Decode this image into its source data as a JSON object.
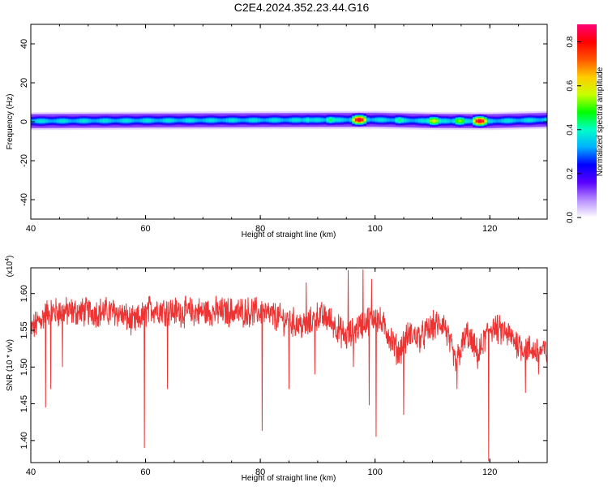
{
  "title": "C2E4.2024.352.23.44.G16",
  "colors": {
    "snr_line": "#ee3333",
    "background": "#ffffff",
    "colorbar": [
      "#ffffff",
      "#b68cff",
      "#5a00ff",
      "#0000ff",
      "#00b0ff",
      "#00ffc8",
      "#00ff00",
      "#c8ff00",
      "#ffcc00",
      "#ff5500",
      "#ff0000",
      "#ff0077"
    ]
  },
  "chart_data": [
    {
      "type": "heatmap",
      "name": "spectrogram",
      "xlabel": "Height of straight line (km)",
      "ylabel": "Frequency (Hz)",
      "xlim": [
        40,
        130
      ],
      "ylim": [
        -50,
        50
      ],
      "x_ticks": [
        40,
        60,
        80,
        100,
        120
      ],
      "x_tick_labels": [
        "40",
        "60",
        "80",
        "100",
        "120"
      ],
      "y_ticks": [
        -40,
        -20,
        0,
        20,
        40
      ],
      "y_tick_labels": [
        "-40",
        "-20",
        "0",
        "20",
        "40"
      ],
      "band_center_hz": [
        [
          40,
          0.3
        ],
        [
          60,
          0.6
        ],
        [
          80,
          0.8
        ],
        [
          100,
          1.0
        ],
        [
          110,
          0.4
        ],
        [
          120,
          0.3
        ],
        [
          130,
          1.0
        ]
      ],
      "band_halfwidth_hz": 3,
      "hotspots": [
        {
          "x": 97,
          "y": 1.5,
          "amplitude": 0.85
        },
        {
          "x": 104,
          "y": 1.5,
          "amplitude": 0.45
        },
        {
          "x": 110,
          "y": 0,
          "amplitude": 0.6
        },
        {
          "x": 114.5,
          "y": 0,
          "amplitude": 0.55
        },
        {
          "x": 118,
          "y": 0,
          "amplitude": 0.85
        },
        {
          "x": 88,
          "y": 1.5,
          "amplitude": 0.4
        },
        {
          "x": 92,
          "y": 1.5,
          "amplitude": 0.45
        }
      ],
      "colorbar": {
        "label": "Normalized spectral amplitude",
        "range": [
          0,
          0.88
        ],
        "ticks": [
          0.0,
          0.2,
          0.4,
          0.6,
          0.8
        ],
        "tick_labels": [
          "0.0",
          "0.2",
          "0.4",
          "0.6",
          "0.8"
        ]
      }
    },
    {
      "type": "line",
      "name": "snr",
      "xlabel": "Height of straight line (km)",
      "ylabel": "SNR (10 * v/v)",
      "y_multiplier": "(x10^4)",
      "xlim": [
        40,
        130
      ],
      "ylim": [
        1.37,
        1.635
      ],
      "x_ticks": [
        40,
        60,
        80,
        100,
        120
      ],
      "x_tick_labels": [
        "40",
        "60",
        "80",
        "100",
        "120"
      ],
      "y_ticks": [
        1.4,
        1.45,
        1.5,
        1.55,
        1.6
      ],
      "y_tick_labels": [
        "1.40",
        "1.45",
        "1.50",
        "1.55",
        "1.60"
      ],
      "trend": [
        [
          40,
          1.55
        ],
        [
          43,
          1.575
        ],
        [
          50,
          1.575
        ],
        [
          55,
          1.575
        ],
        [
          58,
          1.56
        ],
        [
          61,
          1.58
        ],
        [
          66,
          1.575
        ],
        [
          72,
          1.575
        ],
        [
          77,
          1.575
        ],
        [
          80,
          1.575
        ],
        [
          84,
          1.565
        ],
        [
          88,
          1.555
        ],
        [
          90,
          1.57
        ],
        [
          92,
          1.565
        ],
        [
          95,
          1.54
        ],
        [
          98,
          1.56
        ],
        [
          100,
          1.57
        ],
        [
          102,
          1.55
        ],
        [
          104,
          1.52
        ],
        [
          106,
          1.545
        ],
        [
          108,
          1.54
        ],
        [
          110,
          1.555
        ],
        [
          112,
          1.56
        ],
        [
          114,
          1.505
        ],
        [
          116,
          1.545
        ],
        [
          118,
          1.515
        ],
        [
          120,
          1.555
        ],
        [
          123,
          1.545
        ],
        [
          126,
          1.525
        ],
        [
          130,
          1.52
        ]
      ],
      "spikes": [
        [
          42.6,
          1.445
        ],
        [
          43.5,
          1.47
        ],
        [
          45.5,
          1.5
        ],
        [
          59.8,
          1.39
        ],
        [
          63.8,
          1.47
        ],
        [
          80.3,
          1.413
        ],
        [
          85,
          1.47
        ],
        [
          89.5,
          1.49
        ],
        [
          96.2,
          1.5
        ],
        [
          99,
          1.448
        ],
        [
          100.2,
          1.405
        ],
        [
          105,
          1.435
        ],
        [
          114.3,
          1.47
        ],
        [
          119.8,
          1.372
        ],
        [
          126.2,
          1.465
        ],
        [
          128.5,
          1.49
        ],
        [
          95.3,
          1.632
        ],
        [
          97.9,
          1.633
        ],
        [
          99.4,
          1.62
        ],
        [
          88,
          1.615
        ]
      ]
    }
  ]
}
